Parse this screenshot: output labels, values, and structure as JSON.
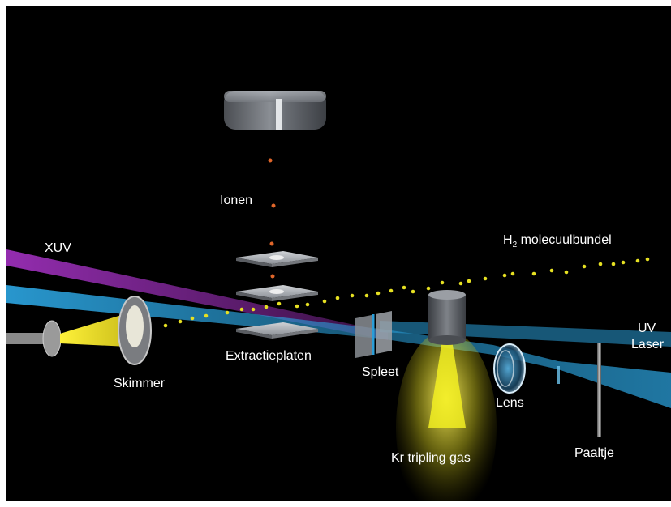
{
  "labels": {
    "ions": "Ionen",
    "xuv": "XUV",
    "h2_prefix": "H",
    "h2_sub": "2",
    "h2_suffix": " molecuulbundel",
    "extraction_plates": "Extractieplaten",
    "skimmer": "Skimmer",
    "slit": "Spleet",
    "uv_laser_line1": "UV",
    "uv_laser_line2": "Laser",
    "lens": "Lens",
    "post": "Paaltje",
    "kr_gas": "Kr tripling gas"
  },
  "colors": {
    "background": "#000000",
    "uv_beam": "#2a9ed8",
    "xuv_beam": "#9b2fb8",
    "molecule_dots": "#e6e022",
    "ion_dots": "#e0662a",
    "gas_jet": "#f2ee22",
    "text": "#ffffff"
  }
}
